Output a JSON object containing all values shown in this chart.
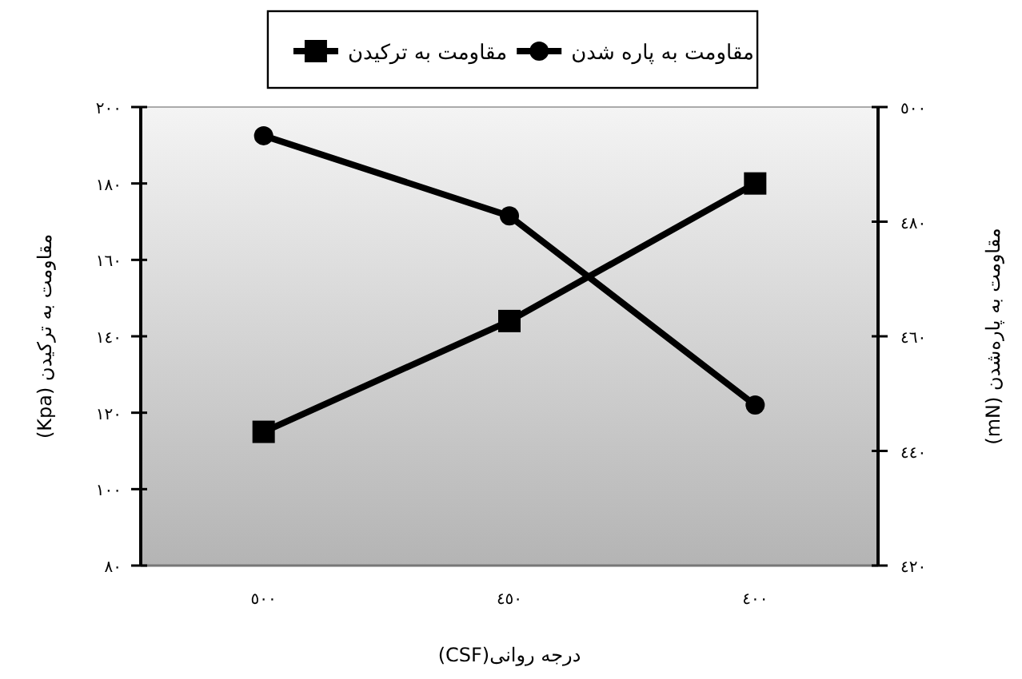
{
  "chart_data": {
    "type": "line",
    "xlabel": "درجه روانی(CSF)",
    "ylabel": "مقاومت به ترکیدن (Kpa)",
    "y2label": "مقاومت به پاره‌شدن (mN)",
    "categories": [
      "٥٠٠",
      "٤٥٠",
      "٤٠٠"
    ],
    "series": [
      {
        "name": "مقاومت به پاره شدن",
        "color": "#000000",
        "marker": "circle",
        "axis": "y2",
        "values": [
          495,
          481,
          448
        ]
      },
      {
        "name": "مقاومت به ترکیدن",
        "color": "#000000",
        "marker": "square",
        "values": [
          115,
          144,
          180
        ]
      }
    ],
    "ylim": [
      80,
      200
    ],
    "yticks": [
      {
        "value": 80,
        "label": "٨٠"
      },
      {
        "value": 100,
        "label": "١٠٠"
      },
      {
        "value": 120,
        "label": "١٢٠"
      },
      {
        "value": 140,
        "label": "١٤٠"
      },
      {
        "value": 160,
        "label": "١٦٠"
      },
      {
        "value": 180,
        "label": "١٨٠"
      },
      {
        "value": 200,
        "label": "٢٠٠"
      }
    ],
    "y2lim": [
      420,
      500
    ],
    "y2ticks": [
      {
        "value": 420,
        "label": "٤٢٠"
      },
      {
        "value": 440,
        "label": "٤٤٠"
      },
      {
        "value": 460,
        "label": "٤٦٠"
      },
      {
        "value": 480,
        "label": "٤٨٠"
      },
      {
        "value": 500,
        "label": "٥٠٠"
      }
    ],
    "legend": "top",
    "grid": false,
    "line_style": "solid"
  }
}
